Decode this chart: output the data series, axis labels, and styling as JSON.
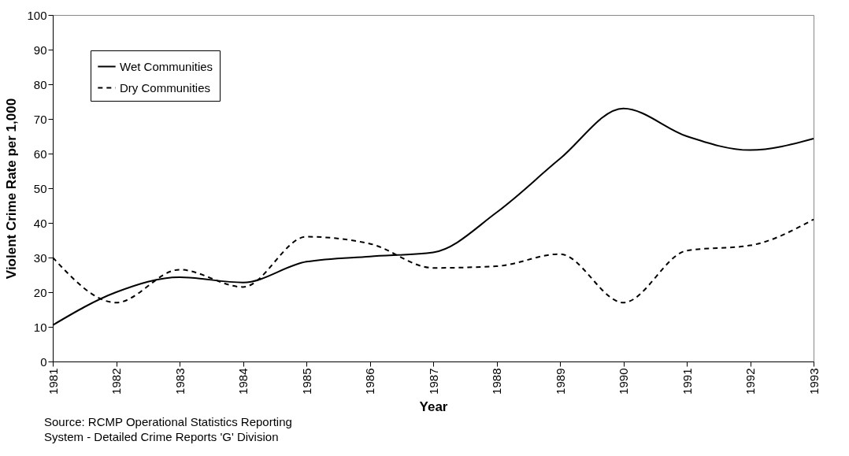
{
  "chart_data": {
    "type": "line",
    "xlabel": "Year",
    "ylabel": "Violent Crime Rate per 1,000",
    "categories": [
      "1981",
      "1982",
      "1983",
      "1984",
      "1985",
      "1986",
      "1987",
      "1988",
      "1989",
      "1990",
      "1991",
      "1992",
      "1993"
    ],
    "series": [
      {
        "name": "Wet Communities",
        "color": "#000000",
        "line_style": "solid",
        "values": [
          10.5,
          20,
          24.3,
          22.8,
          28.8,
          30.3,
          31.5,
          43,
          58.5,
          73,
          65,
          61,
          64.3
        ]
      },
      {
        "name": "Dry Communities",
        "color": "#000000",
        "line_style": "dashed",
        "values": [
          30,
          17,
          26.5,
          21.5,
          36,
          34,
          27,
          27.5,
          31,
          17,
          32,
          33.5,
          41
        ]
      }
    ],
    "ylim": [
      0,
      100
    ],
    "yticks": [
      0,
      10,
      20,
      30,
      40,
      50,
      60,
      70,
      80,
      90,
      100
    ],
    "grid": false,
    "legend": "top left",
    "marker": "none",
    "annotations": [
      "Source: RCMP Operational Statistics Reporting",
      "System - Detailed Crime Reports 'G' Division"
    ]
  }
}
